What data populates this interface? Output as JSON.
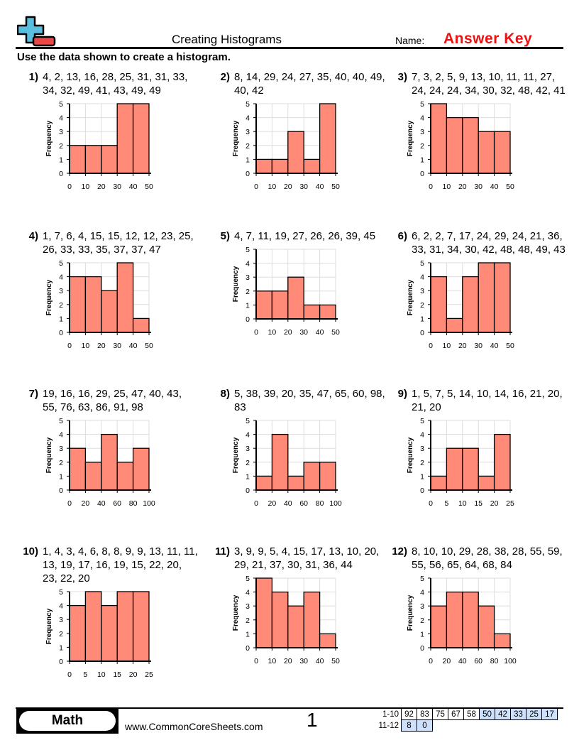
{
  "header": {
    "title": "Creating Histograms",
    "name_label": "Name:",
    "name_value": "Answer Key",
    "instructions": "Use the data shown to create a histogram."
  },
  "colors": {
    "bar_fill": "#ff8a78",
    "answer_key": "#ee1111",
    "logo_plus": "#5bbde0",
    "logo_minus": "#e84848",
    "score_highlight": "#cfe0fb"
  },
  "axis_label": "Frequency",
  "problems": [
    {
      "num": "1)",
      "data": "4, 2, 13, 16, 28, 25, 31, 31, 33, 34, 32, 49, 41, 43, 49, 49"
    },
    {
      "num": "2)",
      "data": "8, 14, 29, 24, 27, 35, 40, 40, 49, 40, 42"
    },
    {
      "num": "3)",
      "data": "7, 3, 2, 5, 9, 13, 10, 11, 11, 27, 24, 24, 24, 34, 30, 32, 48, 42, 41"
    },
    {
      "num": "4)",
      "data": "1, 7, 6, 4, 15, 15, 12, 12, 23, 25, 26, 33, 33, 35, 37, 37, 47"
    },
    {
      "num": "5)",
      "data": "4, 7, 11, 19, 27, 26, 26, 39, 45"
    },
    {
      "num": "6)",
      "data": "6, 2, 2, 7, 17, 24, 29, 24, 21, 36, 33, 31, 34, 30, 42, 48, 48, 49, 43"
    },
    {
      "num": "7)",
      "data": "19, 16, 16, 29, 25, 47, 40, 43, 55, 76, 63, 86, 91, 98"
    },
    {
      "num": "8)",
      "data": "5, 38, 39, 20, 35, 47, 65, 60, 98, 83"
    },
    {
      "num": "9)",
      "data": "1, 5, 7, 5, 14, 10, 14, 16, 21, 20, 21, 20"
    },
    {
      "num": "10)",
      "data": "1, 4, 3, 4, 6, 8, 8, 9, 9, 13, 11, 11, 13, 19, 17, 16, 19, 15, 22, 20, 23, 22, 20"
    },
    {
      "num": "11)",
      "data": "3, 9, 9, 5, 4, 15, 17, 13, 10, 20, 29, 21, 37, 30, 31, 36, 44"
    },
    {
      "num": "12)",
      "data": "8, 10, 10, 29, 28, 38, 28, 55, 59, 55, 56, 65, 64, 68, 84"
    }
  ],
  "chart_data": [
    {
      "type": "bar",
      "ylabel": "Frequency",
      "bin_edges": [
        0,
        10,
        20,
        30,
        40,
        50
      ],
      "values": [
        2,
        2,
        2,
        5,
        5
      ],
      "ylim": [
        0,
        5
      ],
      "grid": true
    },
    {
      "type": "bar",
      "ylabel": "Frequency",
      "bin_edges": [
        0,
        10,
        20,
        30,
        40,
        50
      ],
      "values": [
        1,
        1,
        3,
        1,
        5
      ],
      "ylim": [
        0,
        5
      ],
      "grid": true
    },
    {
      "type": "bar",
      "ylabel": "Frequency",
      "bin_edges": [
        0,
        10,
        20,
        30,
        40,
        50
      ],
      "values": [
        5,
        4,
        4,
        3,
        3
      ],
      "ylim": [
        0,
        5
      ],
      "grid": true
    },
    {
      "type": "bar",
      "ylabel": "Frequency",
      "bin_edges": [
        0,
        10,
        20,
        30,
        40,
        50
      ],
      "values": [
        4,
        4,
        3,
        5,
        1
      ],
      "ylim": [
        0,
        5
      ],
      "grid": true
    },
    {
      "type": "bar",
      "ylabel": "Frequency",
      "bin_edges": [
        0,
        10,
        20,
        30,
        40,
        50
      ],
      "values": [
        2,
        2,
        3,
        1,
        1
      ],
      "ylim": [
        0,
        5
      ],
      "grid": true
    },
    {
      "type": "bar",
      "ylabel": "Frequency",
      "bin_edges": [
        0,
        10,
        20,
        30,
        40,
        50
      ],
      "values": [
        4,
        1,
        4,
        5,
        5
      ],
      "ylim": [
        0,
        5
      ],
      "grid": true
    },
    {
      "type": "bar",
      "ylabel": "Frequency",
      "bin_edges": [
        0,
        20,
        40,
        60,
        80,
        100
      ],
      "values": [
        3,
        2,
        4,
        2,
        3
      ],
      "ylim": [
        0,
        5
      ],
      "grid": true
    },
    {
      "type": "bar",
      "ylabel": "Frequency",
      "bin_edges": [
        0,
        20,
        40,
        60,
        80,
        100
      ],
      "values": [
        1,
        4,
        1,
        2,
        2
      ],
      "ylim": [
        0,
        5
      ],
      "grid": true
    },
    {
      "type": "bar",
      "ylabel": "Frequency",
      "bin_edges": [
        0,
        5,
        10,
        15,
        20,
        25
      ],
      "values": [
        1,
        3,
        3,
        1,
        4
      ],
      "ylim": [
        0,
        5
      ],
      "grid": true
    },
    {
      "type": "bar",
      "ylabel": "Frequency",
      "bin_edges": [
        0,
        5,
        10,
        15,
        20,
        25
      ],
      "values": [
        4,
        5,
        4,
        5,
        5
      ],
      "ylim": [
        0,
        5
      ],
      "grid": true
    },
    {
      "type": "bar",
      "ylabel": "Frequency",
      "bin_edges": [
        0,
        10,
        20,
        30,
        40,
        50
      ],
      "values": [
        5,
        4,
        3,
        4,
        1
      ],
      "ylim": [
        0,
        5
      ],
      "grid": true
    },
    {
      "type": "bar",
      "ylabel": "Frequency",
      "bin_edges": [
        0,
        20,
        40,
        60,
        80,
        100
      ],
      "values": [
        3,
        4,
        4,
        3,
        1
      ],
      "ylim": [
        0,
        5
      ],
      "grid": true
    }
  ],
  "footer": {
    "subject": "Math",
    "website": "www.CommonCoreSheets.com",
    "page": "1",
    "score_rows": [
      {
        "label": "1-10",
        "scores": [
          "92",
          "83",
          "75",
          "67",
          "58",
          "50",
          "42",
          "33",
          "25",
          "17"
        ]
      },
      {
        "label": "11-12",
        "scores": [
          "8",
          "0"
        ]
      }
    ]
  }
}
